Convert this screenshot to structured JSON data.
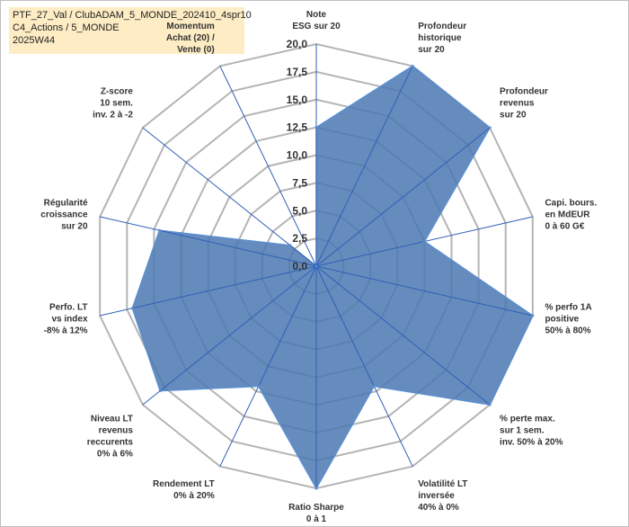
{
  "colors": {
    "fill": "#4a78b0",
    "stroke": "#5b8fd0",
    "grid": "#b4b4b4",
    "spoke": "#2f5fb8",
    "title_bg": "#fdecc4"
  },
  "title": {
    "line1": "PTF_27_Val / ClubADAM_5_MONDE_202410_4spr10",
    "line2": "C4_Actions / 5_MONDE",
    "line3": "2025W44"
  },
  "chart_data": {
    "type": "radar",
    "range": [
      0,
      20
    ],
    "ticks": [
      "0,0",
      "2,5",
      "5,0",
      "7,5",
      "10,0",
      "12,5",
      "15,0",
      "17,5",
      "20,0"
    ],
    "axes": [
      {
        "label": [
          "Note",
          "ESG sur 20"
        ],
        "value": 12.5
      },
      {
        "label": [
          "Profondeur",
          "historique",
          "sur 20"
        ],
        "value": 20
      },
      {
        "label": [
          "Profondeur",
          "revenus",
          "sur 20"
        ],
        "value": 20
      },
      {
        "label": [
          "Capi. bours.",
          "en MdEUR",
          "0 à 60 G€"
        ],
        "value": 10
      },
      {
        "label": [
          "% perfo 1A",
          "positive",
          "50% à 80%"
        ],
        "value": 20
      },
      {
        "label": [
          "% perte max.",
          "sur 1 sem.",
          "inv. 50% à 20%"
        ],
        "value": 20
      },
      {
        "label": [
          "Volatilité LT",
          "inversée",
          "40% à 0%"
        ],
        "value": 12
      },
      {
        "label": [
          "Ratio Sharpe",
          "0 à 1"
        ],
        "value": 20
      },
      {
        "label": [
          "Rendement LT",
          "0% à 20%"
        ],
        "value": 12
      },
      {
        "label": [
          "Niveau LT",
          "revenus",
          "reccurents",
          "0% à 6%"
        ],
        "value": 18
      },
      {
        "label": [
          "Perfo. LT",
          "vs index",
          "-8% à 12%"
        ],
        "value": 17
      },
      {
        "label": [
          "Régularité",
          "croissance",
          "sur 20"
        ],
        "value": 14.5
      },
      {
        "label": [
          "Z-score",
          "10 sem.",
          "inv. 2 à -2"
        ],
        "value": 3
      },
      {
        "label": [
          "Momentum",
          "Achat (20) /",
          "Vente (0)"
        ],
        "value": 0
      }
    ]
  }
}
